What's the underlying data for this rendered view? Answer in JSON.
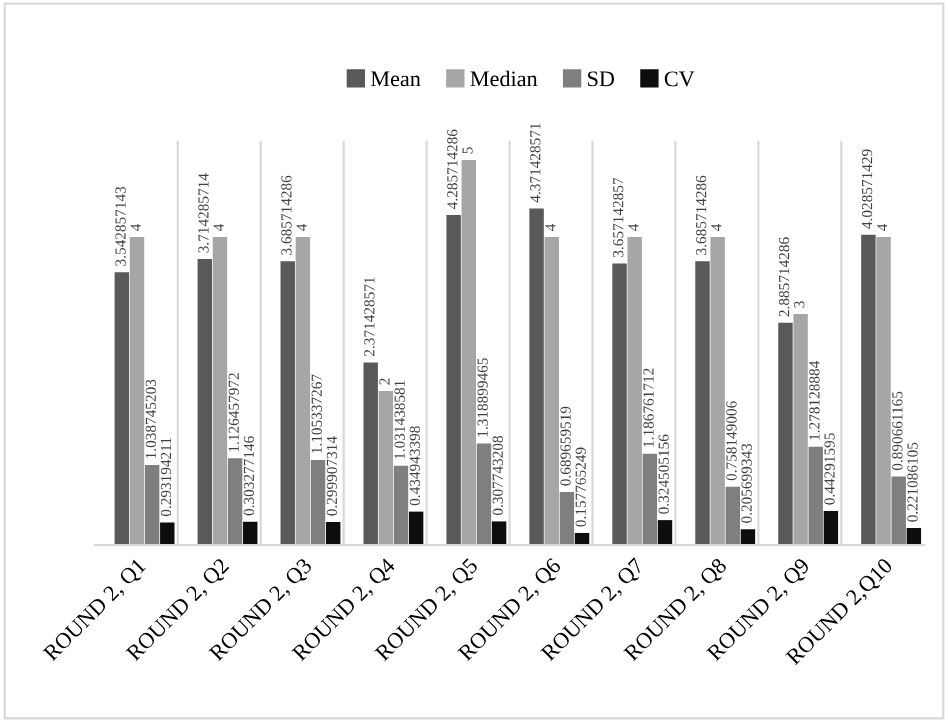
{
  "chart_data": {
    "type": "bar",
    "categories": [
      "ROUND 2, Q1",
      "ROUND 2, Q2",
      "ROUND 2, Q3",
      "ROUND 2, Q4",
      "ROUND 2, Q5",
      "ROUND 2, Q6",
      "ROUND 2, Q7",
      "ROUND 2, Q8",
      "ROUND 2, Q9",
      "ROUND 2,Q10"
    ],
    "series": [
      {
        "name": "Mean",
        "color": "#595959",
        "values": [
          3.542857143,
          3.714285714,
          3.685714286,
          2.371428571,
          4.285714286,
          4.371428571,
          3.657142857,
          3.685714286,
          2.885714286,
          4.028571429
        ]
      },
      {
        "name": "Median",
        "color": "#a6a6a6",
        "values": [
          4,
          4,
          4,
          2,
          5,
          4,
          4,
          4,
          3,
          4
        ]
      },
      {
        "name": "SD",
        "color": "#7f7f7f",
        "values": [
          1.038745203,
          1.126457972,
          1.105337267,
          1.031438581,
          1.318899465,
          0.689659519,
          1.186761712,
          0.758149006,
          1.278128884,
          0.890661165
        ]
      },
      {
        "name": "CV",
        "color": "#0d0d0d",
        "values": [
          0.293194211,
          0.303277146,
          0.299907314,
          0.434943398,
          0.307743208,
          0.157765249,
          0.324505156,
          0.205699343,
          0.44291595,
          0.221086105
        ]
      }
    ],
    "data_labels": true,
    "grid": "x",
    "legend": "top"
  }
}
